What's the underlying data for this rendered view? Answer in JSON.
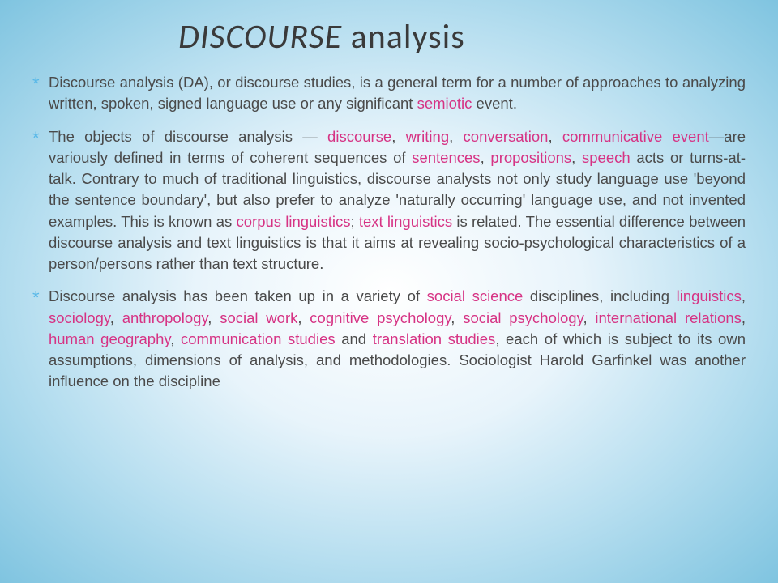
{
  "title_html": "<span class='disc'>DISCOURSE</span> analysis",
  "bullets": [
    "Discourse analysis (DA), or discourse studies, is a general term for a number of approaches to analyzing written, spoken, signed language use or any significant <span class='link'>semiotic</span> event.",
    "The objects of discourse analysis — <span class='link'>discourse</span>, <span class='link'>writing</span>, <span class='link'>conversation</span>, <span class='link'>communicative event</span>—are variously defined in terms of coherent sequences of <span class='link'>sentences</span>, <span class='link'>propositions</span>, <span class='link'>speech</span> acts or turns-at-talk. Contrary to much of traditional linguistics, discourse analysts not only study language use 'beyond the sentence boundary', but also prefer to analyze 'naturally occurring' language use, and not invented examples. This is known as <span class='link'>corpus linguistics</span>; <span class='link'>text linguistics</span> is related. The essential difference between discourse analysis and text linguistics is that it aims at revealing socio-psychological characteristics of a person/persons rather than text structure.",
    "Discourse analysis has been taken up in a variety of <span class='link'>social science</span> disciplines, including <span class='link'>linguistics</span>, <span class='link'>sociology</span>, <span class='link'>anthropology</span>, <span class='link'>social work</span>, <span class='link'>cognitive psychology</span>, <span class='link'>social psychology</span>, <span class='link'>international relations</span>, <span class='link'>human geography</span>, <span class='link'>communication studies</span> and <span class='link'>translation studies</span>, each of which is subject to its own assumptions, dimensions of analysis, and methodologies. Sociologist Harold Garfinkel was another influence on the discipline"
  ],
  "colors": {
    "title": "#3a3a3a",
    "body_text": "#4a4a4a",
    "link": "#d63384",
    "bullet_star": "#58b8e8",
    "bg_inner": "#ffffff",
    "bg_outer": "#7fc4e0"
  },
  "typography": {
    "title_fontsize": 42,
    "body_fontsize": 18.5,
    "body_lineheight": 1.42
  }
}
